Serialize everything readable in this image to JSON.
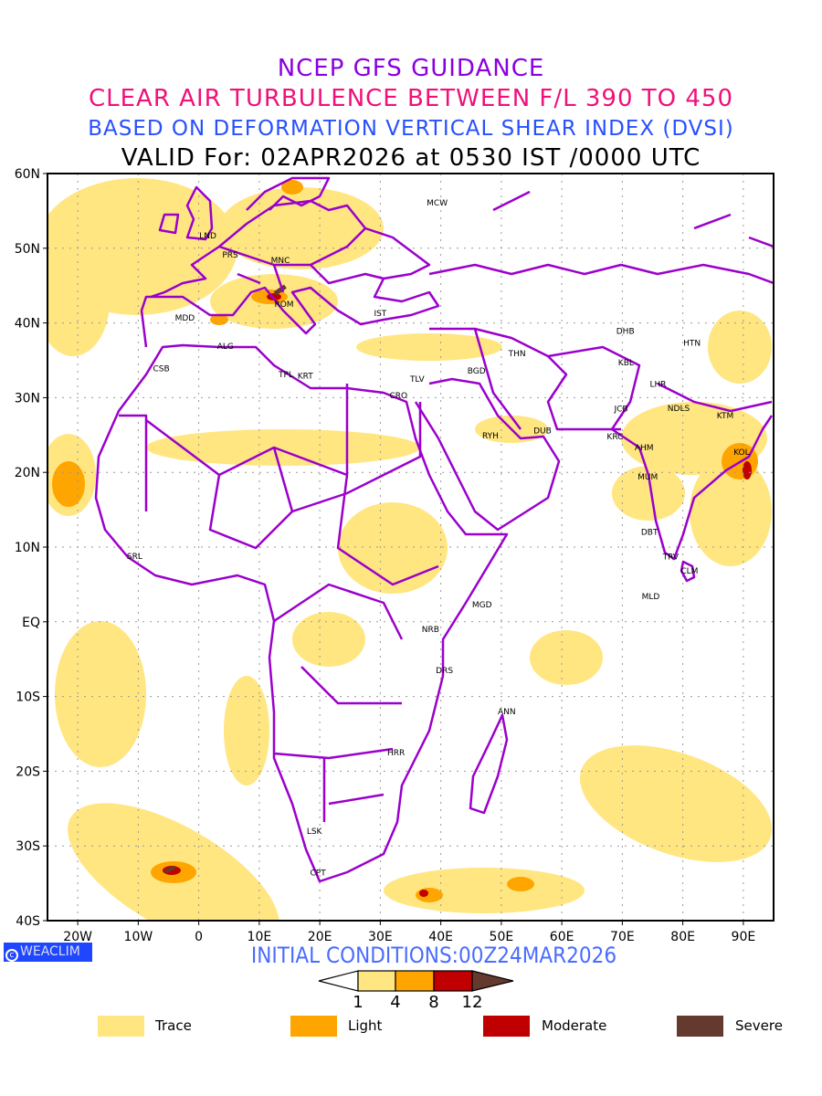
{
  "titles": {
    "line1": "NCEP GFS GUIDANCE",
    "line2": "CLEAR AIR TURBULENCE BETWEEN F/L 390 TO 450",
    "line3": "BASED ON DEFORMATION VERTICAL SHEAR INDEX (DVSI)",
    "line4": "VALID For: 02APR2026 at 0530 IST /0000 UTC"
  },
  "map": {
    "lon_range": [
      -25,
      95
    ],
    "lat_range": [
      -40,
      60
    ],
    "lat_ticks": [
      {
        "value": 60,
        "label": "60N"
      },
      {
        "value": 50,
        "label": "50N"
      },
      {
        "value": 40,
        "label": "40N"
      },
      {
        "value": 30,
        "label": "30N"
      },
      {
        "value": 20,
        "label": "20N"
      },
      {
        "value": 10,
        "label": "10N"
      },
      {
        "value": 0,
        "label": "EQ"
      },
      {
        "value": -10,
        "label": "10S"
      },
      {
        "value": -20,
        "label": "20S"
      },
      {
        "value": -30,
        "label": "30S"
      },
      {
        "value": -40,
        "label": "40S"
      }
    ],
    "lon_ticks": [
      {
        "value": -20,
        "label": "20W"
      },
      {
        "value": -10,
        "label": "10W"
      },
      {
        "value": 0,
        "label": "0"
      },
      {
        "value": 10,
        "label": "10E"
      },
      {
        "value": 20,
        "label": "20E"
      },
      {
        "value": 30,
        "label": "30E"
      },
      {
        "value": 40,
        "label": "40E"
      },
      {
        "value": 50,
        "label": "50E"
      },
      {
        "value": 60,
        "label": "60E"
      },
      {
        "value": 70,
        "label": "70E"
      },
      {
        "value": 80,
        "label": "80E"
      },
      {
        "value": 90,
        "label": "90E"
      }
    ],
    "stations": [
      {
        "code": "LND",
        "lon": 1.5,
        "lat": 51.7
      },
      {
        "code": "PRS",
        "lon": 5.2,
        "lat": 49.1
      },
      {
        "code": "MNC",
        "lon": 13.5,
        "lat": 48.4
      },
      {
        "code": "ROM",
        "lon": 14.1,
        "lat": 42.5
      },
      {
        "code": "MDD",
        "lon": -2.3,
        "lat": 40.7
      },
      {
        "code": "ALG",
        "lon": 4.4,
        "lat": 36.9
      },
      {
        "code": "CSB",
        "lon": -6.2,
        "lat": 33.9
      },
      {
        "code": "TPL",
        "lon": 14.4,
        "lat": 33.1
      },
      {
        "code": "KRT",
        "lon": 17.6,
        "lat": 32.9
      },
      {
        "code": "IST",
        "lon": 30.0,
        "lat": 41.3
      },
      {
        "code": "CRO",
        "lon": 33.0,
        "lat": 30.3
      },
      {
        "code": "TLV",
        "lon": 36.1,
        "lat": 32.5
      },
      {
        "code": "MCW",
        "lon": 39.4,
        "lat": 56.1
      },
      {
        "code": "BGD",
        "lon": 45.9,
        "lat": 33.6
      },
      {
        "code": "THN",
        "lon": 52.6,
        "lat": 35.9
      },
      {
        "code": "DHB",
        "lon": 70.5,
        "lat": 38.9
      },
      {
        "code": "HTN",
        "lon": 81.5,
        "lat": 37.3
      },
      {
        "code": "KBL",
        "lon": 70.6,
        "lat": 34.7
      },
      {
        "code": "LHR",
        "lon": 75.9,
        "lat": 31.8
      },
      {
        "code": "JCB",
        "lon": 69.8,
        "lat": 28.5
      },
      {
        "code": "NDLS",
        "lon": 79.3,
        "lat": 28.6
      },
      {
        "code": "KTM",
        "lon": 87.0,
        "lat": 27.6
      },
      {
        "code": "RYH",
        "lon": 48.2,
        "lat": 24.9
      },
      {
        "code": "DUB",
        "lon": 56.8,
        "lat": 25.6
      },
      {
        "code": "KRC",
        "lon": 68.8,
        "lat": 24.8
      },
      {
        "code": "AHM",
        "lon": 73.6,
        "lat": 23.3
      },
      {
        "code": "KOL",
        "lon": 89.7,
        "lat": 22.7
      },
      {
        "code": "MUM",
        "lon": 74.2,
        "lat": 19.4
      },
      {
        "code": "DBT",
        "lon": 74.5,
        "lat": 12.0
      },
      {
        "code": "TRV",
        "lon": 78.0,
        "lat": 8.7
      },
      {
        "code": "CLM",
        "lon": 81.1,
        "lat": 6.8
      },
      {
        "code": "MLD",
        "lon": 74.7,
        "lat": 3.4
      },
      {
        "code": "SRL",
        "lon": -10.6,
        "lat": 8.8
      },
      {
        "code": "MGD",
        "lon": 46.8,
        "lat": 2.3
      },
      {
        "code": "NRB",
        "lon": 38.3,
        "lat": -1.0
      },
      {
        "code": "DRS",
        "lon": 40.6,
        "lat": -6.5
      },
      {
        "code": "ANN",
        "lon": 50.9,
        "lat": -12.0
      },
      {
        "code": "HRR",
        "lon": 32.6,
        "lat": -17.5
      },
      {
        "code": "LSK",
        "lon": 19.1,
        "lat": -28.0
      },
      {
        "code": "CPT",
        "lon": 19.7,
        "lat": -33.6
      }
    ]
  },
  "colors": {
    "trace": "#FFE680",
    "light": "#FFA500",
    "moderate": "#C00000",
    "severe": "#653A2E",
    "coast": "#9B00CC"
  },
  "footer": {
    "logo": "WEACLIM",
    "initial_conditions": "INITIAL CONDITIONS:00Z24MAR2026"
  },
  "colorbar": {
    "ticks": [
      "1",
      "4",
      "8",
      "12"
    ]
  },
  "legend": [
    {
      "label": "Trace"
    },
    {
      "label": "Light"
    },
    {
      "label": "Moderate"
    },
    {
      "label": "Severe"
    }
  ]
}
